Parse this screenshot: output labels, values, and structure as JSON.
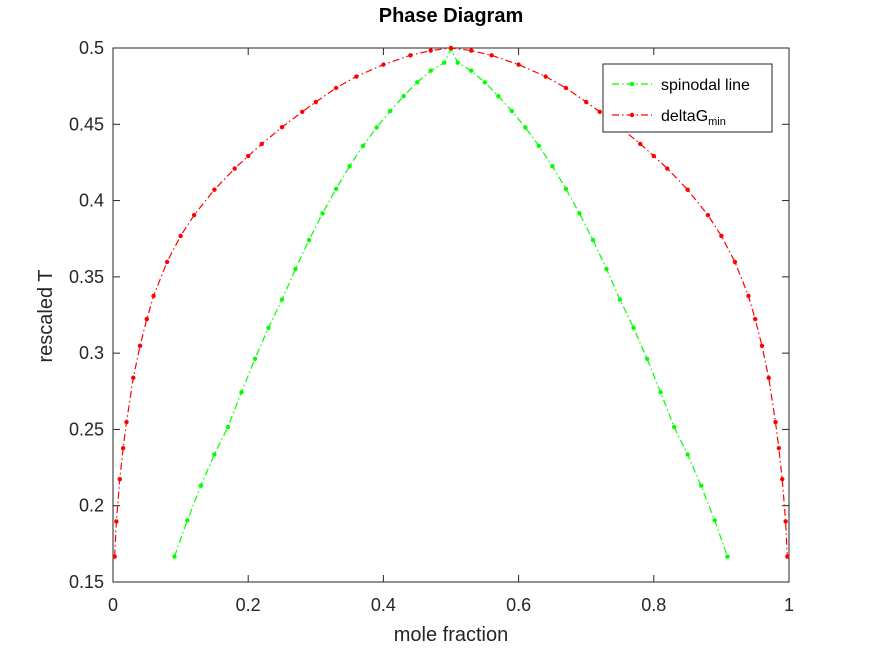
{
  "chart_data": {
    "type": "line",
    "title": "Phase Diagram",
    "xlabel": "mole fraction",
    "ylabel": "rescaled T",
    "xlim": [
      0,
      1
    ],
    "ylim": [
      0.15,
      0.5
    ],
    "xticks": [
      0,
      0.2,
      0.4,
      0.6,
      0.8,
      1
    ],
    "xtick_labels": [
      "0",
      "0.2",
      "0.4",
      "0.6",
      "0.8",
      "1"
    ],
    "yticks": [
      0.15,
      0.2,
      0.25,
      0.3,
      0.35,
      0.4,
      0.45,
      0.5
    ],
    "ytick_labels": [
      "0.15",
      "0.2",
      "0.25",
      "0.3",
      "0.35",
      "0.4",
      "0.45",
      "0.5"
    ],
    "grid": false,
    "legend_position": "top-right",
    "series": [
      {
        "name": "spinodal line",
        "color": "#00ff00",
        "line_style": "dash-dot",
        "marker": "point",
        "x": [
          0.091,
          0.11,
          0.13,
          0.15,
          0.17,
          0.19,
          0.21,
          0.23,
          0.25,
          0.27,
          0.29,
          0.31,
          0.33,
          0.35,
          0.37,
          0.39,
          0.41,
          0.43,
          0.45,
          0.47,
          0.49,
          0.5,
          0.51,
          0.53,
          0.55,
          0.57,
          0.59,
          0.61,
          0.63,
          0.65,
          0.67,
          0.69,
          0.71,
          0.73,
          0.75,
          0.77,
          0.79,
          0.81,
          0.83,
          0.85,
          0.87,
          0.89,
          0.909
        ],
        "y": [
          0.1667,
          0.1904,
          0.2131,
          0.2336,
          0.2516,
          0.2744,
          0.2963,
          0.3166,
          0.3351,
          0.3552,
          0.3741,
          0.3916,
          0.4077,
          0.4225,
          0.4359,
          0.4479,
          0.4587,
          0.4685,
          0.4775,
          0.4851,
          0.4904,
          0.4992,
          0.4904,
          0.4851,
          0.4775,
          0.4685,
          0.4587,
          0.4479,
          0.4359,
          0.4225,
          0.4077,
          0.3916,
          0.3741,
          0.3552,
          0.3351,
          0.3166,
          0.2963,
          0.2744,
          0.2516,
          0.2336,
          0.2131,
          0.1904,
          0.1667
        ]
      },
      {
        "name": "deltaG",
        "name_subscript": "min",
        "color": "#ff0000",
        "line_style": "dash-dot",
        "marker": "point",
        "x": [
          0.0025,
          0.005,
          0.01,
          0.015,
          0.02,
          0.03,
          0.04,
          0.05,
          0.06,
          0.08,
          0.1,
          0.12,
          0.15,
          0.18,
          0.2,
          0.22,
          0.25,
          0.28,
          0.3,
          0.33,
          0.36,
          0.4,
          0.44,
          0.47,
          0.5,
          0.53,
          0.56,
          0.6,
          0.64,
          0.67,
          0.7,
          0.72,
          0.75,
          0.78,
          0.8,
          0.82,
          0.85,
          0.88,
          0.9,
          0.92,
          0.94,
          0.95,
          0.96,
          0.97,
          0.98,
          0.985,
          0.99,
          0.995,
          0.9975
        ],
        "y": [
          0.1667,
          0.1897,
          0.2174,
          0.2377,
          0.2548,
          0.2838,
          0.3048,
          0.3223,
          0.3375,
          0.3598,
          0.3768,
          0.3905,
          0.4071,
          0.421,
          0.4292,
          0.4371,
          0.4481,
          0.4582,
          0.4646,
          0.4738,
          0.4813,
          0.4891,
          0.4952,
          0.4983,
          0.5,
          0.4983,
          0.4952,
          0.4891,
          0.4813,
          0.4738,
          0.4646,
          0.4582,
          0.4481,
          0.4371,
          0.4292,
          0.421,
          0.4071,
          0.3905,
          0.3768,
          0.3598,
          0.3375,
          0.3223,
          0.3048,
          0.2838,
          0.2548,
          0.2377,
          0.2174,
          0.1897,
          0.1667
        ]
      }
    ]
  }
}
